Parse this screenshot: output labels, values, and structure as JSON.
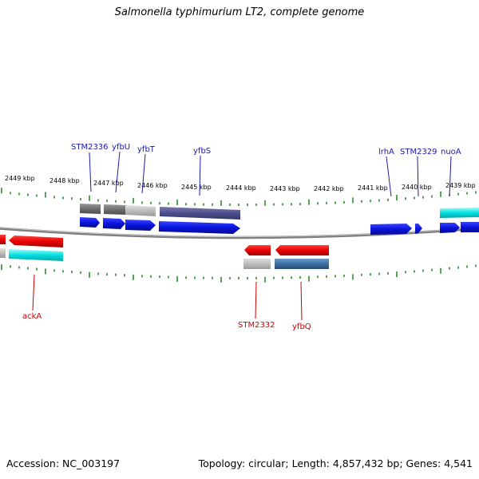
{
  "title": "Salmonella typhimurium LT2, complete genome",
  "footer": {
    "accession": "Accession: NC_003197",
    "summary": "Topology: circular; Length: 4,857,432 bp; Genes: 4,541"
  },
  "scale_labels": [
    "2449 kbp",
    "2448 kbp",
    "2447 kbp",
    "2446 kbp",
    "2445 kbp",
    "2444 kbp",
    "2443 kbp",
    "2442 kbp",
    "2441 kbp",
    "2440 kbp",
    "2439 kbp"
  ],
  "top_gene_labels": [
    "STM2336",
    "yfbU",
    "yfbT",
    "yfbS",
    "lrhA",
    "STM2329",
    "nuoA"
  ],
  "bottom_gene_labels": [
    "ackA",
    "STM2332",
    "yfbQ"
  ],
  "colors": {
    "forward_cds": "#0a14dd",
    "reverse_cds": "#e80000",
    "label_top": "#1a1aaa",
    "label_bottom": "#cc0000",
    "tick": "#2a8a2a",
    "backbone": "#808080",
    "cyan": "#00e0e0",
    "slate": "#4e4e8c",
    "steel": "#3d6ea0",
    "gray_dark": "#6e6e6e",
    "gray_light": "#b8b8b8"
  }
}
